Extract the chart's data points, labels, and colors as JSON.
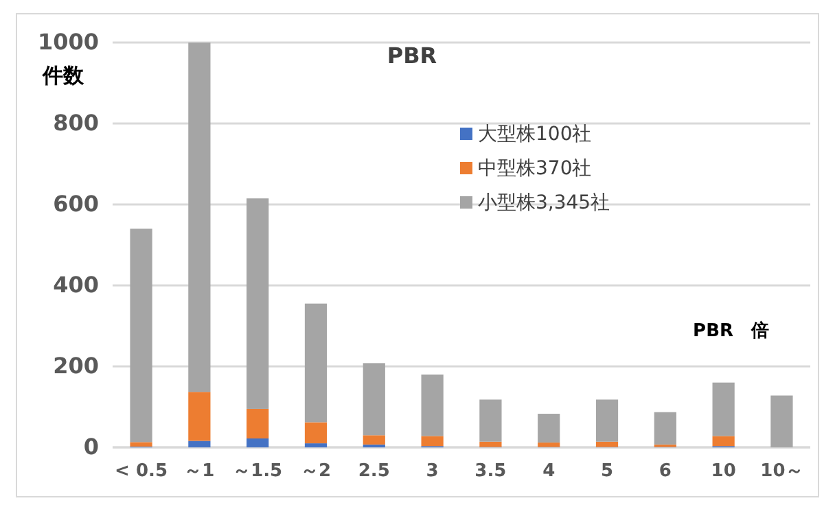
{
  "chart_data": {
    "type": "bar",
    "title": "PBR",
    "ylabel": "件数",
    "xlabel": "PBR　倍",
    "categories": [
      "< 0.5",
      "～1",
      "～1.5",
      "～2",
      "2.5",
      "3",
      "3.5",
      "4",
      "5",
      "6",
      "10",
      "10～"
    ],
    "stacked": true,
    "ylim": [
      0,
      1000
    ],
    "yticks": [
      0,
      200,
      400,
      600,
      800,
      1000
    ],
    "grid": "y",
    "legend": "top right",
    "series": [
      {
        "name": "大型株100社",
        "color": "#4472c4",
        "values": [
          2,
          16,
          22,
          10,
          7,
          3,
          1,
          1,
          1,
          1,
          3,
          0
        ]
      },
      {
        "name": "中型株370社",
        "color": "#ed7d31",
        "values": [
          11,
          121,
          73,
          52,
          23,
          25,
          13,
          11,
          13,
          6,
          25,
          0
        ]
      },
      {
        "name": "小型株3,345社",
        "color": "#a5a5a5",
        "values": [
          527,
          863,
          520,
          293,
          178,
          152,
          104,
          71,
          104,
          80,
          132,
          128
        ]
      }
    ]
  }
}
